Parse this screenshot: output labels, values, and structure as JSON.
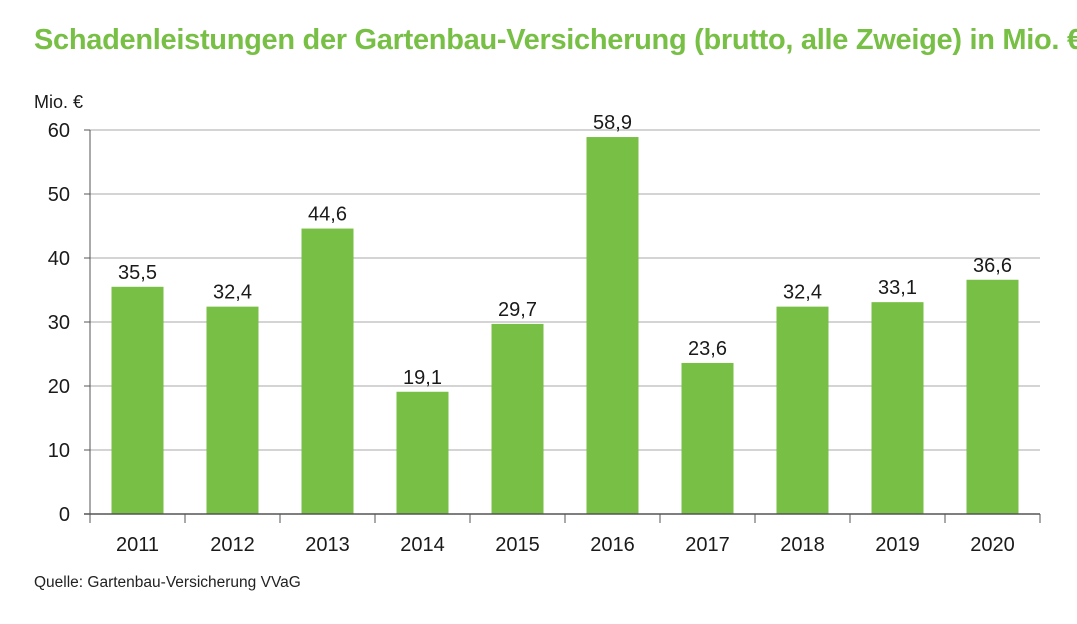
{
  "title": "Schadenleistungen der Gartenbau-Versicherung (brutto, alle Zweige) in Mio. €",
  "source": "Quelle: Gartenbau-Versicherung VVaG",
  "colors": {
    "bar": "#77bf45",
    "title": "#77bf45",
    "grid": "#a8a8a8",
    "axis": "#555555"
  },
  "chart_data": {
    "type": "bar",
    "title": "Schadenleistungen der Gartenbau-Versicherung (brutto, alle Zweige) in Mio. €",
    "ylabel": "Mio. €",
    "xlabel": "",
    "categories": [
      "2011",
      "2012",
      "2013",
      "2014",
      "2015",
      "2016",
      "2017",
      "2018",
      "2019",
      "2020"
    ],
    "values": [
      35.5,
      32.4,
      44.6,
      19.1,
      29.7,
      58.9,
      23.6,
      32.4,
      33.1,
      36.6
    ],
    "value_labels": [
      "35,5",
      "32,4",
      "44,6",
      "19,1",
      "29,7",
      "58,9",
      "23,6",
      "32,4",
      "33,1",
      "36,6"
    ],
    "ylim": [
      0,
      60
    ],
    "yticks": [
      0,
      10,
      20,
      30,
      40,
      50,
      60
    ],
    "grid": true,
    "legend": "none"
  }
}
